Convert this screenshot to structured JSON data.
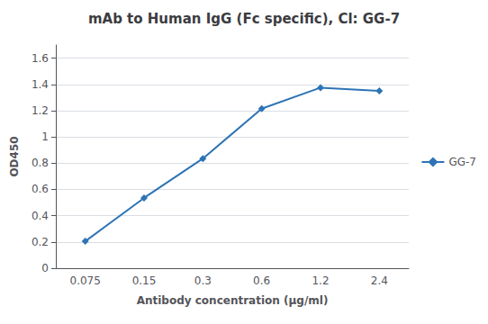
{
  "chart_data": {
    "type": "line",
    "title": "mAb to Human IgG (Fc specific), Cl: GG-7",
    "xlabel": "Antibody concentration (μg/ml)",
    "ylabel": "OD450",
    "categories": [
      "0.075",
      "0.15",
      "0.3",
      "0.6",
      "1.2",
      "2.4"
    ],
    "series": [
      {
        "name": "GG-7",
        "color": "#2E74B5",
        "marker": "diamond",
        "values": [
          0.205,
          0.535,
          0.835,
          1.215,
          1.375,
          1.35
        ]
      }
    ],
    "ylim": [
      0,
      1.7
    ],
    "yticks": [
      0,
      0.2,
      0.4,
      0.6,
      0.8,
      1,
      1.2,
      1.4,
      1.6
    ],
    "grid": true,
    "legend": "right"
  }
}
